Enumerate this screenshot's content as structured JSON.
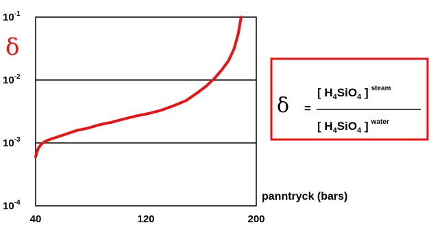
{
  "chart_data": {
    "type": "line",
    "xlabel": "panntryck (bars)",
    "ylabel": "δ",
    "y_scale": "log",
    "xlim": [
      40,
      200
    ],
    "ylim": [
      0.0001,
      0.1
    ],
    "x_ticks": [
      "40",
      "120",
      "200"
    ],
    "y_ticks": [
      {
        "base": "10",
        "exp": "-1"
      },
      {
        "base": "10",
        "exp": "-2"
      },
      {
        "base": "10",
        "exp": "-3"
      },
      {
        "base": "10",
        "exp": "-4"
      }
    ],
    "gridlines_y": [
      0.01,
      0.001
    ],
    "line_color": "#ee1111",
    "series": [
      {
        "x": [
          40,
          41,
          42,
          44,
          47,
          51,
          56,
          62,
          70,
          78,
          86,
          95,
          104,
          113,
          122,
          131,
          140,
          149,
          157,
          164,
          170,
          175,
          180,
          184,
          187,
          189
        ],
        "y": [
          0.0006,
          0.00072,
          0.00082,
          0.00095,
          0.00106,
          0.00115,
          0.00125,
          0.00138,
          0.00158,
          0.00172,
          0.00194,
          0.00213,
          0.0024,
          0.00268,
          0.00293,
          0.0033,
          0.0039,
          0.0047,
          0.0062,
          0.0081,
          0.0108,
          0.0145,
          0.0205,
          0.0316,
          0.055,
          0.1
        ]
      }
    ]
  },
  "formula": {
    "delta": "δ",
    "equals": "=",
    "numerator": {
      "prefix": "[ H",
      "sub1": "4",
      "mid": "SiO",
      "sub2": "4",
      "suffix": " ]",
      "sup": "steam"
    },
    "denominator": {
      "prefix": "[ H",
      "sub1": "4",
      "mid": "SiO",
      "sub2": "4",
      "suffix": " ]",
      "sup": "water"
    },
    "border_color": "#ee1111"
  }
}
